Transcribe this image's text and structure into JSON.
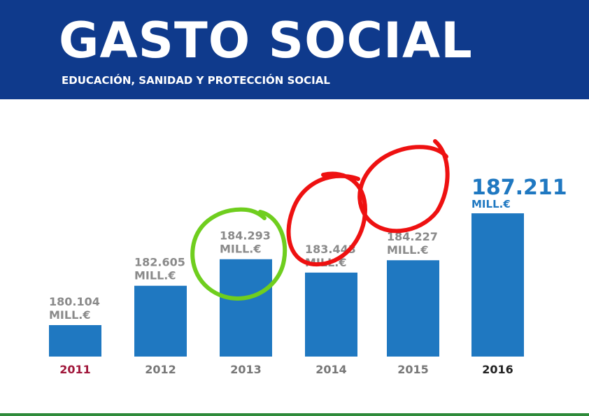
{
  "header": {
    "title": "GASTO SOCIAL",
    "subtitle": "EDUCACIÓN, SANIDAD Y PROTECCIÓN SOCIAL"
  },
  "colors": {
    "header_bg": "#0f3a8c",
    "bar": "#1f78c1",
    "label_gray": "#8a8a8a",
    "highlight_value": "#1f78c1",
    "year_2011": "#a0163a",
    "year_default": "#777777",
    "year_2016": "#222222",
    "annotation_green": "#6fce1e",
    "annotation_red": "#ee1111"
  },
  "chart_data": {
    "type": "bar",
    "title": "GASTO SOCIAL",
    "subtitle": "EDUCACIÓN, SANIDAD Y PROTECCIÓN SOCIAL",
    "categories": [
      "2011",
      "2012",
      "2013",
      "2014",
      "2015",
      "2016"
    ],
    "values": [
      180104,
      182605,
      184293,
      183443,
      184227,
      187211
    ],
    "value_labels": [
      "180.104",
      "182.605",
      "184.293",
      "183.443",
      "184.227",
      "187.211"
    ],
    "unit_label": "MILL.€",
    "xlabel": "",
    "ylabel": "",
    "grid": false,
    "annotations": [
      {
        "type": "circle",
        "color": "green",
        "target": "2013"
      },
      {
        "type": "circle",
        "color": "red",
        "target": "2014"
      },
      {
        "type": "circle",
        "color": "red",
        "target": "2015"
      }
    ]
  }
}
